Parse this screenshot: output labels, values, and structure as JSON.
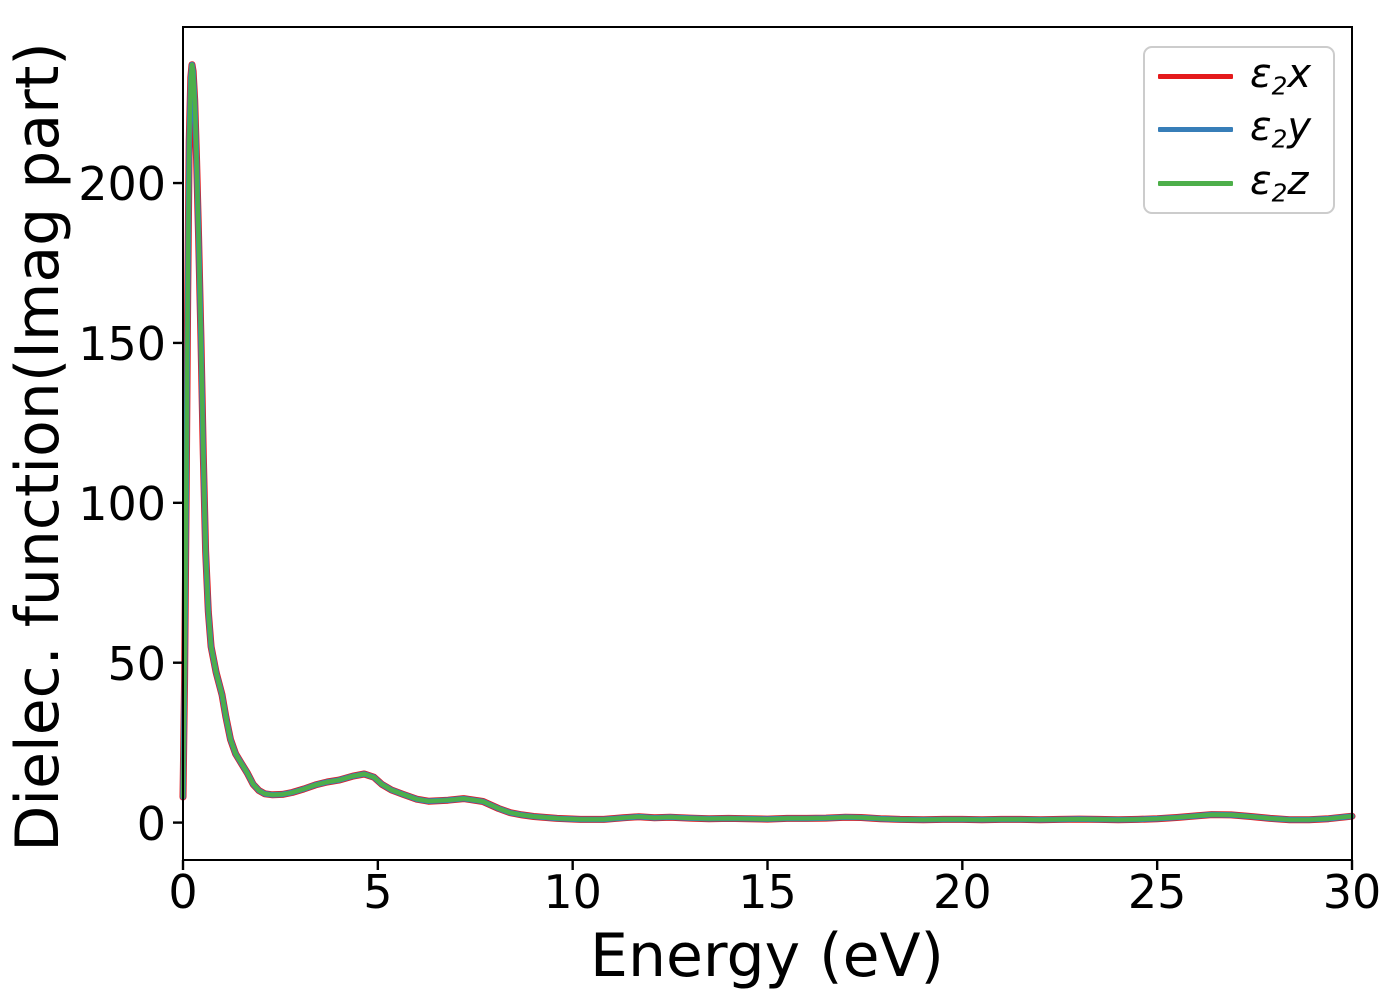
{
  "chart_data": {
    "type": "line",
    "title": "",
    "xlabel": "Energy (eV)",
    "ylabel": "Dielec. function(Imag part)",
    "xlim": [
      0,
      30
    ],
    "ylim": [
      -11.7,
      248.8
    ],
    "xticks": [
      0,
      5,
      10,
      15,
      20,
      25,
      30
    ],
    "xtick_labels": [
      "0",
      "5",
      "10",
      "15",
      "20",
      "25",
      "30"
    ],
    "yticks": [
      0,
      50,
      100,
      150,
      200
    ],
    "ytick_labels": [
      "0",
      "50",
      "100",
      "150",
      "200"
    ],
    "grid": false,
    "legend_position": "upper right",
    "overlap_note": "all three series are visually coincident; green e2z is drawn on top",
    "x": [
      0,
      0.04,
      0.08,
      0.12,
      0.16,
      0.2,
      0.23,
      0.26,
      0.3,
      0.35,
      0.4,
      0.46,
      0.52,
      0.58,
      0.65,
      0.72,
      0.85,
      1.0,
      1.1,
      1.22,
      1.35,
      1.5,
      1.65,
      1.8,
      1.95,
      2.1,
      2.3,
      2.55,
      2.8,
      3.1,
      3.4,
      3.7,
      4.0,
      4.35,
      4.65,
      4.9,
      5.1,
      5.35,
      5.65,
      6.0,
      6.3,
      6.8,
      7.2,
      7.7,
      8.1,
      8.4,
      8.7,
      9.0,
      9.6,
      10.2,
      10.8,
      11.3,
      11.7,
      12.1,
      12.5,
      13.0,
      13.5,
      14.0,
      14.5,
      15.0,
      15.5,
      16.0,
      16.5,
      17.0,
      17.4,
      17.9,
      18.4,
      19.0,
      19.5,
      20.0,
      20.5,
      21.0,
      21.5,
      22.0,
      22.5,
      23.0,
      23.5,
      24.0,
      24.5,
      25.0,
      25.5,
      26.0,
      26.4,
      26.9,
      27.4,
      27.9,
      28.4,
      28.9,
      29.4,
      30.0
    ],
    "y_shared": [
      8,
      45,
      100,
      165,
      213,
      233,
      237,
      235,
      226,
      207,
      183,
      152,
      115,
      85,
      66,
      55,
      47,
      40,
      33,
      26,
      21.5,
      18.5,
      15.5,
      12,
      10,
      9,
      8.7,
      8.8,
      9.4,
      10.5,
      11.8,
      12.7,
      13.3,
      14.5,
      15.2,
      14.2,
      12,
      10.2,
      8.8,
      7.3,
      6.7,
      7,
      7.5,
      6.6,
      4.4,
      3.1,
      2.4,
      1.9,
      1.3,
      1,
      1,
      1.5,
      1.85,
      1.5,
      1.7,
      1.4,
      1.2,
      1.3,
      1.2,
      1.1,
      1.3,
      1.3,
      1.4,
      1.7,
      1.6,
      1.2,
      1,
      0.9,
      1,
      1,
      0.9,
      1,
      1,
      0.9,
      1,
      1.1,
      1,
      0.9,
      1,
      1.2,
      1.6,
      2.1,
      2.5,
      2.4,
      1.9,
      1.3,
      0.9,
      0.9,
      1.2,
      2
    ],
    "series": [
      {
        "name": "e2x",
        "color": "#e41a1c",
        "stroke_width": 7.0
      },
      {
        "name": "e2y",
        "color": "#377eb8",
        "stroke_width": 5.6
      },
      {
        "name": "e2z",
        "color": "#4daf4a",
        "stroke_width": 4.2
      }
    ],
    "axis_color": "#000000",
    "background_color": "#ffffff"
  },
  "legend": {
    "entries": [
      {
        "symbol": "ε",
        "sub": "2",
        "axis": "x"
      },
      {
        "symbol": "ε",
        "sub": "2",
        "axis": "y"
      },
      {
        "symbol": "ε",
        "sub": "2",
        "axis": "z"
      }
    ]
  }
}
